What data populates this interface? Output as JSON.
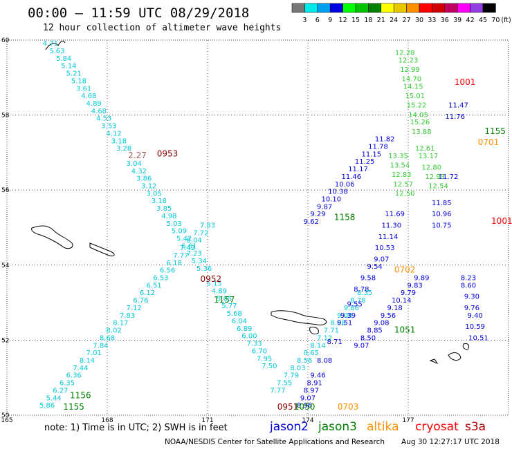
{
  "header": {
    "title": "00:00 – 11:59 UTC 08/29/2018",
    "subtitle": "12 hour collection of altimeter wave heights"
  },
  "legend": {
    "unit": "(ft)",
    "bins": [
      {
        "label": "3",
        "color": "#777777"
      },
      {
        "label": "6",
        "color": "#00e8e8"
      },
      {
        "label": "9",
        "color": "#00a0f0"
      },
      {
        "label": "12",
        "color": "#0000e0"
      },
      {
        "label": "15",
        "color": "#00ff00"
      },
      {
        "label": "18",
        "color": "#00c000"
      },
      {
        "label": "21",
        "color": "#008000"
      },
      {
        "label": "24",
        "color": "#ffff00"
      },
      {
        "label": "27",
        "color": "#e8c800"
      },
      {
        "label": "30",
        "color": "#ff9000"
      },
      {
        "label": "33",
        "color": "#ff0000"
      },
      {
        "label": "36",
        "color": "#d00000"
      },
      {
        "label": "39",
        "color": "#c00060"
      },
      {
        "label": "42",
        "color": "#ff00ff"
      },
      {
        "label": "45",
        "color": "#9040e0"
      },
      {
        "label": "70",
        "color": "#000000"
      }
    ]
  },
  "footer": {
    "note": "note: 1) Time is in UTC; 2) SWH is in feet",
    "satellites": [
      {
        "name": "jason2",
        "color": "#0000e0"
      },
      {
        "name": "jason3",
        "color": "#008000"
      },
      {
        "name": "altika",
        "color": "#ff9000"
      },
      {
        "name": "cryosat",
        "color": "#ff0000"
      },
      {
        "name": "s3a",
        "color": "#b00000"
      }
    ],
    "credit": "NOAA/NESDIS Center for Satellite Applications and Research",
    "timestamp": "Aug 30 12:27:17 UTC 2018"
  },
  "chart_data": {
    "type": "scatter",
    "xlim": [
      165,
      180
    ],
    "ylim": [
      50,
      60
    ],
    "xticks": [
      "165",
      "168",
      "171",
      "174",
      "177"
    ],
    "yticks": [
      "50",
      "52",
      "54",
      "56",
      "58",
      "60"
    ],
    "grid": true,
    "tracks": [
      {
        "color": "#00c8d8",
        "points": [
          [
            166.3,
            59.85,
            "4.71"
          ],
          [
            166.5,
            59.65,
            "5.63"
          ],
          [
            166.7,
            59.45,
            "5.84"
          ],
          [
            166.85,
            59.25,
            "5.14"
          ],
          [
            167.0,
            59.05,
            "5.21"
          ],
          [
            167.15,
            58.85,
            "5.18"
          ],
          [
            167.3,
            58.65,
            "3.61"
          ],
          [
            167.45,
            58.45,
            "4.68"
          ],
          [
            167.6,
            58.25,
            "4.89"
          ],
          [
            167.75,
            58.05,
            "4.68"
          ],
          [
            167.9,
            57.85,
            "4.53"
          ],
          [
            168.05,
            57.65,
            "3.53"
          ],
          [
            168.2,
            57.45,
            "4.12"
          ],
          [
            168.35,
            57.25,
            "3.18"
          ],
          [
            168.5,
            57.05,
            "3.28"
          ],
          [
            168.8,
            56.65,
            "3.04"
          ],
          [
            168.95,
            56.45,
            "4.32"
          ],
          [
            169.1,
            56.25,
            "3.86"
          ],
          [
            169.25,
            56.05,
            "3.12"
          ],
          [
            169.4,
            55.85,
            "3.05"
          ],
          [
            169.55,
            55.65,
            "3.18"
          ],
          [
            169.7,
            55.45,
            "3.85"
          ],
          [
            169.85,
            55.25,
            "4.98"
          ],
          [
            170.0,
            55.05,
            "5.03"
          ],
          [
            170.15,
            54.85,
            "5.09"
          ],
          [
            170.3,
            54.65,
            "5.42"
          ],
          [
            170.45,
            54.45,
            "6.61"
          ],
          [
            170.6,
            54.25,
            "7.23"
          ],
          [
            170.75,
            54.05,
            "5.34"
          ],
          [
            170.9,
            53.85,
            "5.36"
          ],
          [
            171.2,
            53.45,
            "5.15"
          ],
          [
            171.35,
            53.25,
            "4.89"
          ],
          [
            171.5,
            53.05,
            "5.05"
          ],
          [
            171.65,
            52.85,
            "5.77"
          ],
          [
            171.8,
            52.65,
            "5.68"
          ],
          [
            171.95,
            52.45,
            "6.04"
          ],
          [
            172.1,
            52.25,
            "6.89"
          ],
          [
            172.25,
            52.05,
            "6.00"
          ],
          [
            172.4,
            51.85,
            "7.33"
          ],
          [
            172.55,
            51.65,
            "6.70"
          ],
          [
            172.7,
            51.45,
            "7.95"
          ],
          [
            172.85,
            51.25,
            "7.50"
          ]
        ]
      },
      {
        "color": "#00c8d8",
        "points": [
          [
            166.2,
            50.2,
            "5.86"
          ],
          [
            166.4,
            50.4,
            "5.44"
          ],
          [
            166.6,
            50.6,
            "6.27"
          ],
          [
            166.8,
            50.8,
            "6.35"
          ],
          [
            167.0,
            51.0,
            "6.36"
          ],
          [
            167.2,
            51.2,
            "7.44"
          ],
          [
            167.4,
            51.4,
            "8.14"
          ],
          [
            167.6,
            51.6,
            "7.01"
          ],
          [
            167.8,
            51.8,
            "7.84"
          ],
          [
            168.0,
            52.0,
            "8.68"
          ],
          [
            168.2,
            52.2,
            "8.02"
          ],
          [
            168.4,
            52.4,
            "8.17"
          ],
          [
            168.6,
            52.6,
            "7.83"
          ],
          [
            168.8,
            52.8,
            "7.12"
          ],
          [
            169.0,
            53.0,
            "6.76"
          ],
          [
            169.2,
            53.2,
            "6.12"
          ],
          [
            169.4,
            53.4,
            "6.51"
          ],
          [
            169.6,
            53.6,
            "6.53"
          ],
          [
            169.8,
            53.8,
            "6.56"
          ],
          [
            170.0,
            54.0,
            "6.18"
          ],
          [
            170.2,
            54.2,
            "7.77"
          ],
          [
            170.4,
            54.4,
            "7.42"
          ],
          [
            170.6,
            54.6,
            "8.04"
          ],
          [
            170.8,
            54.8,
            "7.72"
          ],
          [
            171.0,
            55.0,
            "7.83"
          ]
        ]
      },
      {
        "color": "#00c8d8",
        "points": [
          [
            173.1,
            50.6,
            "7.77"
          ],
          [
            173.3,
            50.8,
            "7.55"
          ],
          [
            173.5,
            51.0,
            "7.79"
          ],
          [
            173.7,
            51.2,
            "8.03"
          ],
          [
            173.9,
            51.4,
            "8.56"
          ],
          [
            174.1,
            51.6,
            "8.65"
          ],
          [
            174.3,
            51.8,
            "8.14"
          ],
          [
            174.5,
            52.0,
            "7.12"
          ],
          [
            174.7,
            52.2,
            "7.71"
          ],
          [
            174.9,
            52.4,
            "8.68"
          ],
          [
            175.1,
            52.6,
            "9.08"
          ],
          [
            175.3,
            52.8,
            "9.86"
          ],
          [
            175.5,
            53.0,
            "8.78"
          ],
          [
            175.7,
            53.2,
            "8.35"
          ]
        ]
      },
      {
        "color": "#0000e0",
        "points": [
          [
            174.1,
            55.1,
            "9.62"
          ],
          [
            174.3,
            55.3,
            "9.29"
          ],
          [
            174.5,
            55.5,
            "9.87"
          ],
          [
            174.7,
            55.7,
            "10.10"
          ],
          [
            174.9,
            55.9,
            "10.38"
          ],
          [
            175.1,
            56.1,
            "10.06"
          ],
          [
            175.3,
            56.3,
            "11.46"
          ],
          [
            175.5,
            56.5,
            "11.17"
          ],
          [
            175.7,
            56.7,
            "11.25"
          ],
          [
            175.9,
            56.9,
            "11.15"
          ],
          [
            176.1,
            57.1,
            "11.78"
          ],
          [
            176.3,
            57.3,
            "11.82"
          ]
        ]
      },
      {
        "color": "#0000e0",
        "points": [
          [
            175.6,
            51.8,
            "9.07"
          ],
          [
            175.8,
            52.0,
            "8.50"
          ],
          [
            176.0,
            52.2,
            "8.85"
          ],
          [
            176.2,
            52.4,
            "9.08"
          ],
          [
            176.4,
            52.6,
            "9.56"
          ],
          [
            176.6,
            52.8,
            "9.18"
          ],
          [
            176.8,
            53.0,
            "10.14"
          ],
          [
            177.0,
            53.2,
            "9.79"
          ],
          [
            177.2,
            53.4,
            "9.83"
          ],
          [
            177.4,
            53.6,
            "9.89"
          ]
        ]
      },
      {
        "color": "#0000e0",
        "points": [
          [
            173.9,
            50.2,
            "8.96"
          ],
          [
            174.0,
            50.4,
            "9.07"
          ],
          [
            174.1,
            50.6,
            "8.97"
          ],
          [
            174.2,
            50.8,
            "8.91"
          ],
          [
            174.3,
            51.0,
            "9.46"
          ],
          [
            174.5,
            51.4,
            "8.08"
          ],
          [
            174.8,
            51.9,
            "8.71"
          ],
          [
            175.1,
            52.4,
            "9.51"
          ],
          [
            175.2,
            52.6,
            "9.39"
          ],
          [
            175.4,
            52.9,
            "9.55"
          ],
          [
            175.6,
            53.3,
            "8.78"
          ],
          [
            175.8,
            53.6,
            "9.58"
          ],
          [
            176.0,
            53.9,
            "9.54"
          ],
          [
            176.2,
            54.1,
            "9.07"
          ],
          [
            176.3,
            54.4,
            "10.53"
          ],
          [
            176.4,
            54.7,
            "11.14"
          ],
          [
            176.5,
            55.0,
            "11.30"
          ],
          [
            176.6,
            55.3,
            "11.69"
          ]
        ]
      },
      {
        "color": "#0000e0",
        "points": [
          [
            178.0,
            55.0,
            "10.75"
          ],
          [
            178.0,
            55.3,
            "10.96"
          ],
          [
            178.0,
            55.6,
            "11.85"
          ],
          [
            178.2,
            56.3,
            "11.72"
          ],
          [
            178.4,
            57.9,
            "11.76"
          ],
          [
            178.5,
            58.2,
            "11.47"
          ]
        ]
      },
      {
        "color": "#0000e0",
        "points": [
          [
            178.8,
            53.6,
            "8.23"
          ],
          [
            178.8,
            53.4,
            "8.60"
          ],
          [
            178.9,
            53.1,
            "9.30"
          ],
          [
            178.9,
            52.8,
            "9.76"
          ],
          [
            179.0,
            52.6,
            "9.40"
          ],
          [
            179.0,
            52.3,
            "10.59"
          ],
          [
            179.1,
            52.0,
            "10.51"
          ]
        ]
      },
      {
        "color": "#33cc33",
        "points": [
          [
            176.9,
            59.6,
            "12.28"
          ],
          [
            177.0,
            59.4,
            "12.23"
          ],
          [
            177.05,
            59.15,
            "12.99"
          ],
          [
            177.1,
            58.9,
            "14.70"
          ],
          [
            177.15,
            58.7,
            "14.15"
          ],
          [
            177.2,
            58.45,
            "15.01"
          ],
          [
            177.25,
            58.2,
            "15.22"
          ],
          [
            177.3,
            57.95,
            "14.05"
          ],
          [
            177.35,
            57.75,
            "15.26"
          ],
          [
            177.4,
            57.5,
            "13.88"
          ],
          [
            177.5,
            57.05,
            "12.61"
          ],
          [
            177.6,
            56.85,
            "13.17"
          ],
          [
            177.7,
            56.55,
            "12.80"
          ],
          [
            177.8,
            56.3,
            "12.93"
          ],
          [
            177.9,
            56.05,
            "12.54"
          ]
        ]
      },
      {
        "color": "#33cc33",
        "points": [
          [
            176.7,
            56.85,
            "13.35"
          ],
          [
            176.75,
            56.6,
            "13.54"
          ],
          [
            176.8,
            56.35,
            "12.83"
          ],
          [
            176.85,
            56.1,
            "12.57"
          ],
          [
            176.9,
            55.85,
            "12.50"
          ]
        ]
      }
    ],
    "time_labels": [
      {
        "x": 169.8,
        "y": 56.9,
        "text": "0953",
        "color": "#8b0000"
      },
      {
        "x": 168.9,
        "y": 56.85,
        "text": "2.27",
        "color": "#a06060"
      },
      {
        "x": 171.1,
        "y": 53.55,
        "text": "0952",
        "color": "#8b0000"
      },
      {
        "x": 171.5,
        "y": 53.0,
        "text": "1157",
        "color": "#008000"
      },
      {
        "x": 175.1,
        "y": 55.2,
        "text": "1158",
        "color": "#008000"
      },
      {
        "x": 167.2,
        "y": 50.45,
        "text": "1156",
        "color": "#008000"
      },
      {
        "x": 167.0,
        "y": 50.15,
        "text": "1155",
        "color": "#008000"
      },
      {
        "x": 176.9,
        "y": 52.2,
        "text": "1051",
        "color": "#008000"
      },
      {
        "x": 176.9,
        "y": 53.8,
        "text": "0702",
        "color": "#ff9000"
      },
      {
        "x": 175.2,
        "y": 50.15,
        "text": "0703",
        "color": "#ff9000"
      },
      {
        "x": 173.4,
        "y": 50.15,
        "text": "0951",
        "color": "#8b0000"
      },
      {
        "x": 173.9,
        "y": 50.15,
        "text": "1050",
        "color": "#008000"
      },
      {
        "x": 178.7,
        "y": 58.8,
        "text": "1001",
        "color": "#ff0000"
      },
      {
        "x": 179.6,
        "y": 57.5,
        "text": "1155",
        "color": "#008000"
      },
      {
        "x": 179.4,
        "y": 57.2,
        "text": "0701",
        "color": "#ff9000"
      },
      {
        "x": 179.8,
        "y": 55.1,
        "text": "1001",
        "color": "#ff0000"
      }
    ]
  }
}
